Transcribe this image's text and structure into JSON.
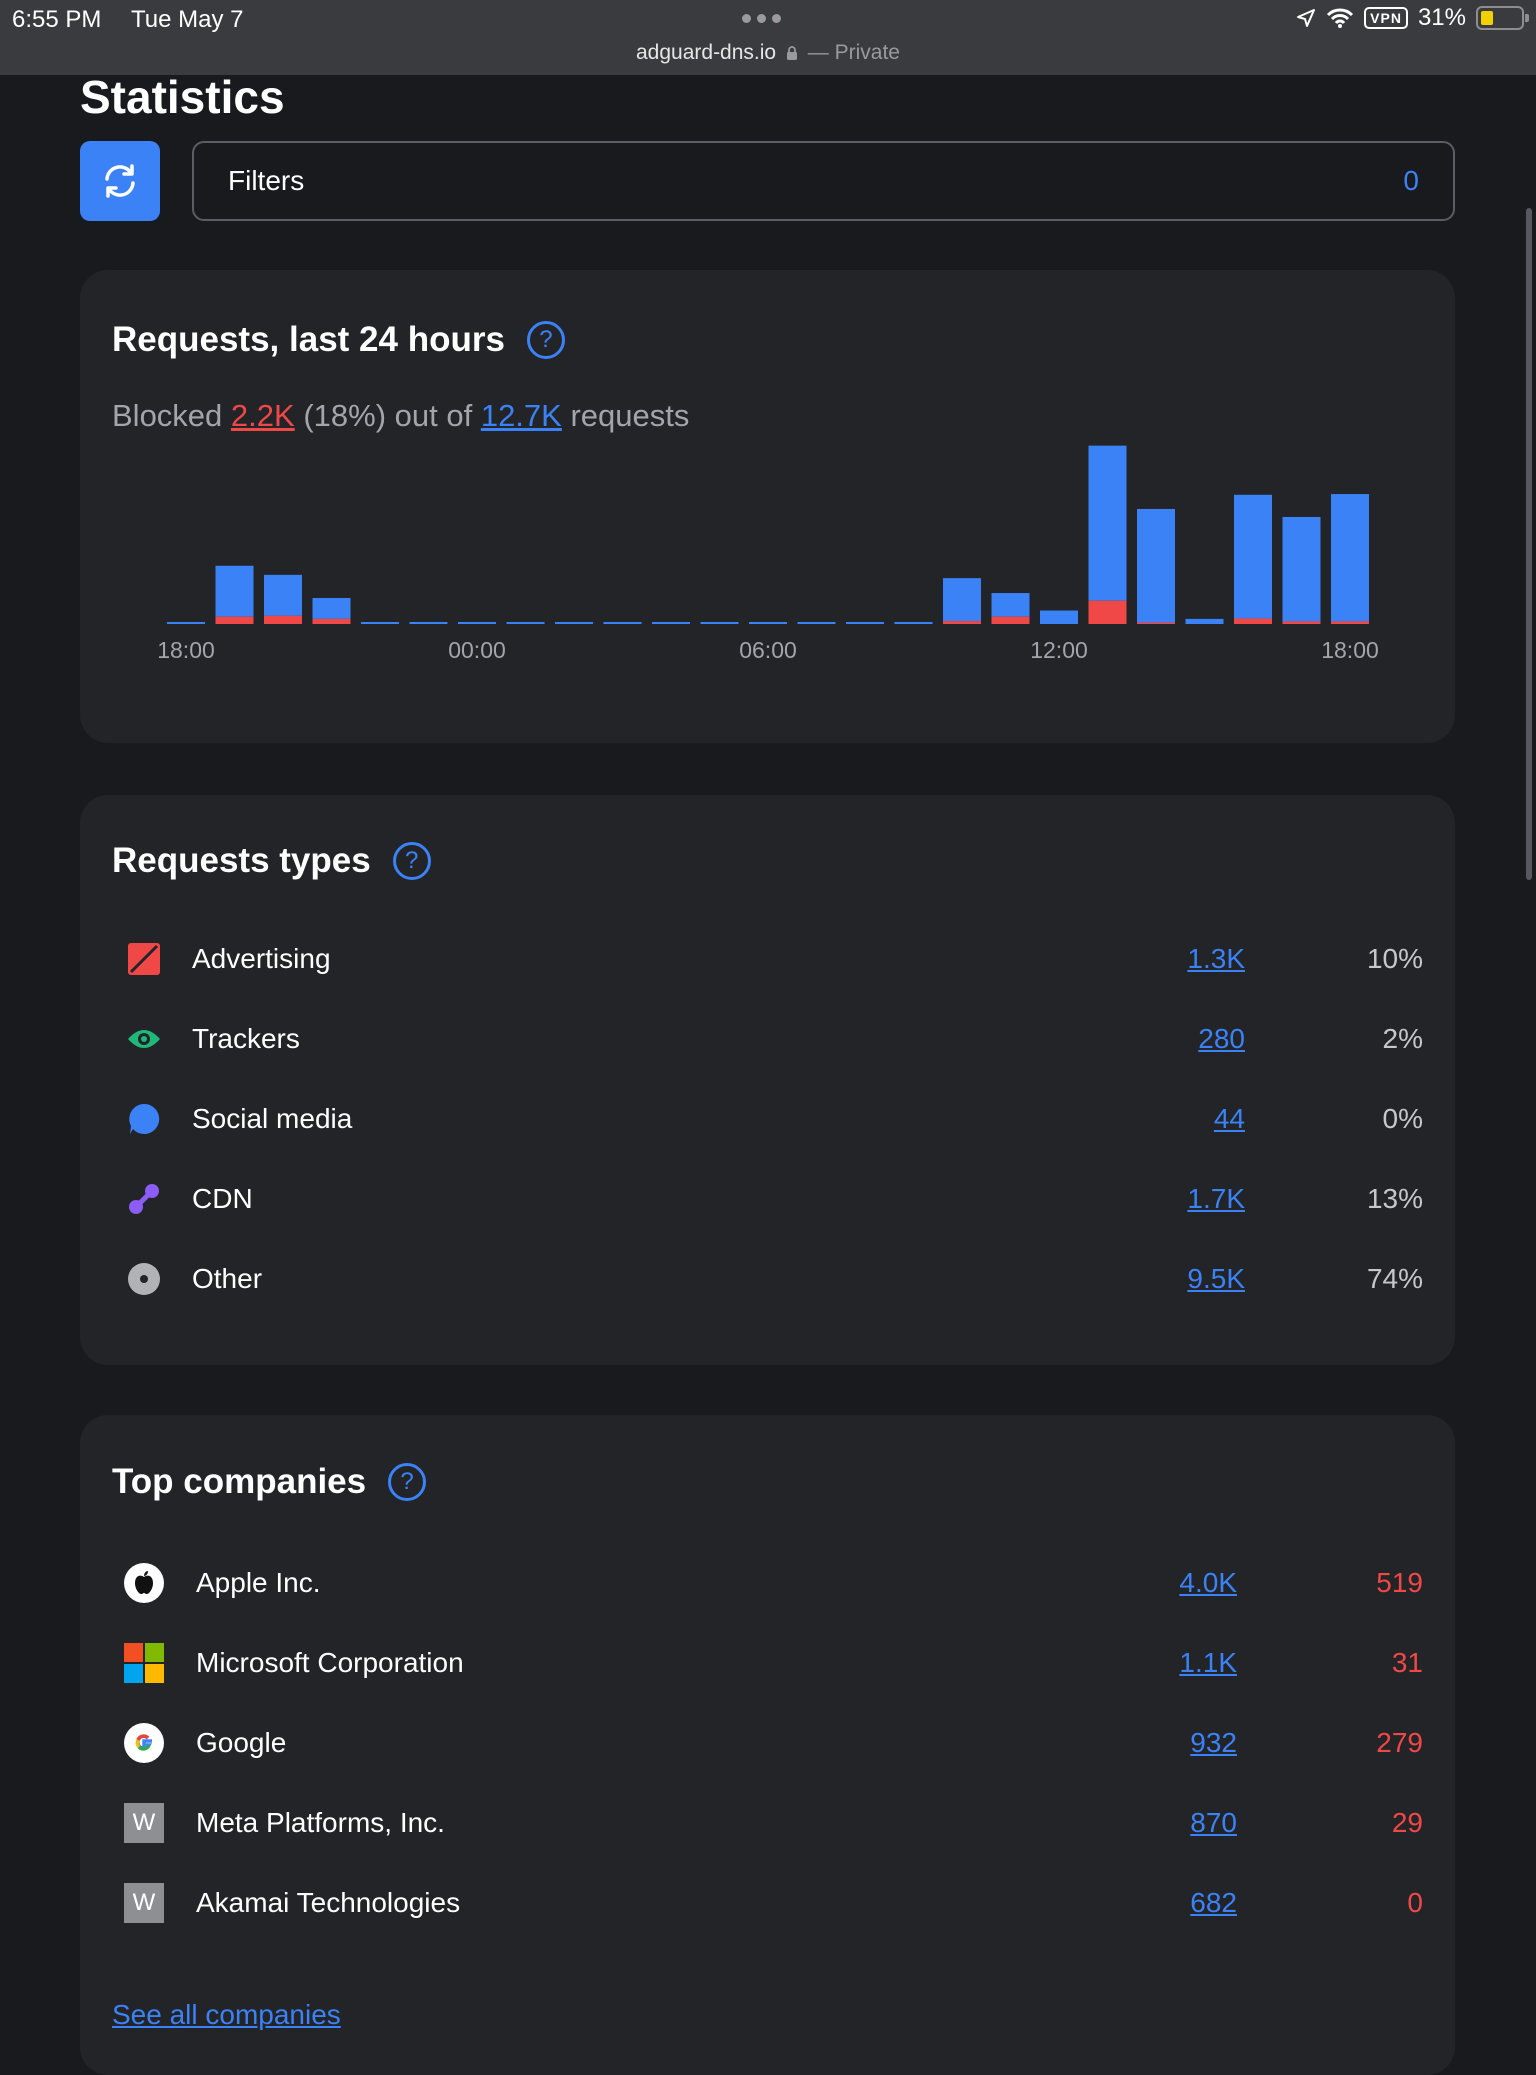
{
  "status_bar": {
    "time": "6:55 PM",
    "date": "Tue May 7",
    "url": "adguard-dns.io",
    "private_label": "— Private",
    "vpn_label": "VPN",
    "battery": "31%"
  },
  "page": {
    "title": "Statistics"
  },
  "filters": {
    "label": "Filters",
    "count": "0"
  },
  "requests_card": {
    "title": "Requests, last 24 hours",
    "summary_prefix": "Blocked",
    "blocked": "2.2K",
    "blocked_pct": "(18%) out of",
    "total": "12.7K",
    "summary_suffix": "requests"
  },
  "chart_data": {
    "type": "bar",
    "stacked": true,
    "title": "Requests, last 24 hours",
    "x_tick_labels": [
      "18:00",
      "00:00",
      "06:00",
      "12:00",
      "18:00"
    ],
    "x_tick_bar_index": [
      0,
      6,
      12,
      18,
      24
    ],
    "categories": [
      "18:00",
      "19:00",
      "20:00",
      "21:00",
      "22:00",
      "23:00",
      "00:00",
      "01:00",
      "02:00",
      "03:00",
      "04:00",
      "05:00",
      "06:00",
      "07:00",
      "08:00",
      "09:00",
      "10:00",
      "11:00",
      "12:00",
      "13:00",
      "14:00",
      "15:00",
      "16:00",
      "17:00",
      "18:00"
    ],
    "series": [
      {
        "name": "Blocked",
        "color": "#f04747",
        "values": [
          0,
          40,
          45,
          28,
          0,
          0,
          0,
          0,
          0,
          0,
          0,
          0,
          0,
          0,
          0,
          0,
          16,
          40,
          0,
          128,
          8,
          0,
          30,
          14,
          14
        ]
      },
      {
        "name": "Allowed",
        "color": "#3b82f6",
        "values": [
          4,
          280,
          225,
          115,
          4,
          4,
          4,
          4,
          4,
          4,
          4,
          4,
          4,
          4,
          4,
          4,
          236,
          130,
          74,
          852,
          624,
          28,
          680,
          574,
          700
        ]
      }
    ],
    "ylim": [
      0,
      1000
    ],
    "xlabel": "",
    "ylabel": ""
  },
  "types_card": {
    "title": "Requests types",
    "items": [
      {
        "label": "Advertising",
        "count": "1.3K",
        "pct": "10%",
        "icon": "advertising-icon",
        "color": "#f04747"
      },
      {
        "label": "Trackers",
        "count": "280",
        "pct": "2%",
        "icon": "eye-icon",
        "color": "#1fb87a"
      },
      {
        "label": "Social media",
        "count": "44",
        "pct": "0%",
        "icon": "chat-bubble-icon",
        "color": "#3b82f6"
      },
      {
        "label": "CDN",
        "count": "1.7K",
        "pct": "13%",
        "icon": "cdn-icon",
        "color": "#8b5cf6"
      },
      {
        "label": "Other",
        "count": "9.5K",
        "pct": "74%",
        "icon": "other-icon",
        "color": "#b0b2b6"
      }
    ]
  },
  "companies_card": {
    "title": "Top companies",
    "items": [
      {
        "label": "Apple Inc.",
        "count": "4.0K",
        "blocked": "519",
        "icon": "apple-icon"
      },
      {
        "label": "Microsoft Corporation",
        "count": "1.1K",
        "blocked": "31",
        "icon": "microsoft-icon"
      },
      {
        "label": "Google",
        "count": "932",
        "blocked": "279",
        "icon": "google-icon"
      },
      {
        "label": "Meta Platforms, Inc.",
        "count": "870",
        "blocked": "29",
        "icon": "placeholder-w-icon",
        "icon_letter": "W"
      },
      {
        "label": "Akamai Technologies",
        "count": "682",
        "blocked": "0",
        "icon": "placeholder-w-icon",
        "icon_letter": "W"
      }
    ],
    "see_all": "See all companies"
  }
}
